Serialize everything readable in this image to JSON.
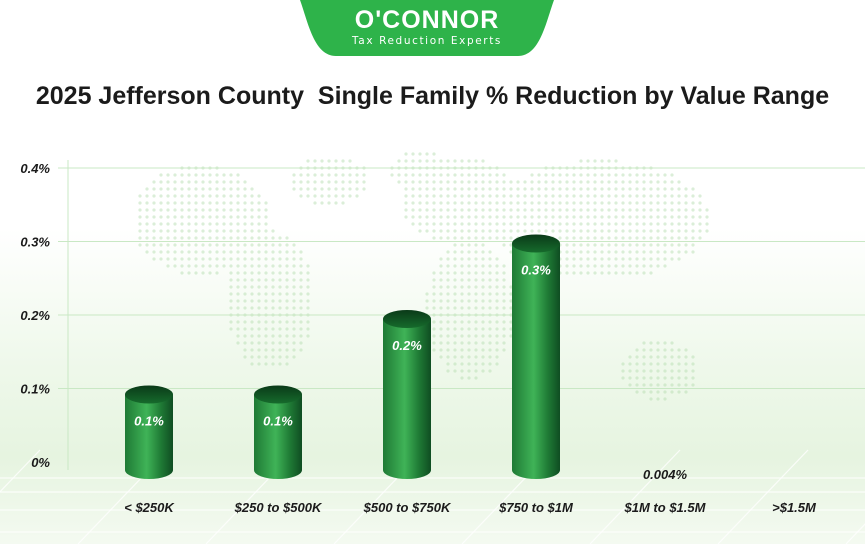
{
  "logo": {
    "name": "O'CONNOR",
    "tagline": "Tax Reduction Experts"
  },
  "chart_data": {
    "type": "bar",
    "title": "2025 Jefferson County  Single Family % Reduction by Value Range",
    "categories": [
      "< $250K",
      "$250 to $500K",
      "$500 to $750K",
      "$750 to $1M",
      "$1M to $1.5M",
      ">$1.5M"
    ],
    "values": [
      0.1,
      0.1,
      0.2,
      0.3,
      0.004,
      null
    ],
    "data_labels": [
      "0.1%",
      "0.1%",
      "0.2%",
      "0.3%",
      "0.004%",
      ""
    ],
    "y_ticks": [
      {
        "value": 0,
        "label": "0%"
      },
      {
        "value": 0.1,
        "label": "0.1%"
      },
      {
        "value": 0.2,
        "label": "0.2%"
      },
      {
        "value": 0.3,
        "label": "0.3%"
      },
      {
        "value": 0.4,
        "label": "0.4%"
      }
    ],
    "ylim": [
      0,
      0.4
    ],
    "xlabel": "",
    "ylabel": "",
    "grid": true,
    "bar_style": "3d-cylinder",
    "colors": {
      "bar_dark": "#0f4d22",
      "bar_mid": "#2e9e46",
      "bar_light": "#3fb357",
      "bar_top": "#0a3a18",
      "grid": "#c9e8c4",
      "brand": "#2eb34a"
    }
  }
}
